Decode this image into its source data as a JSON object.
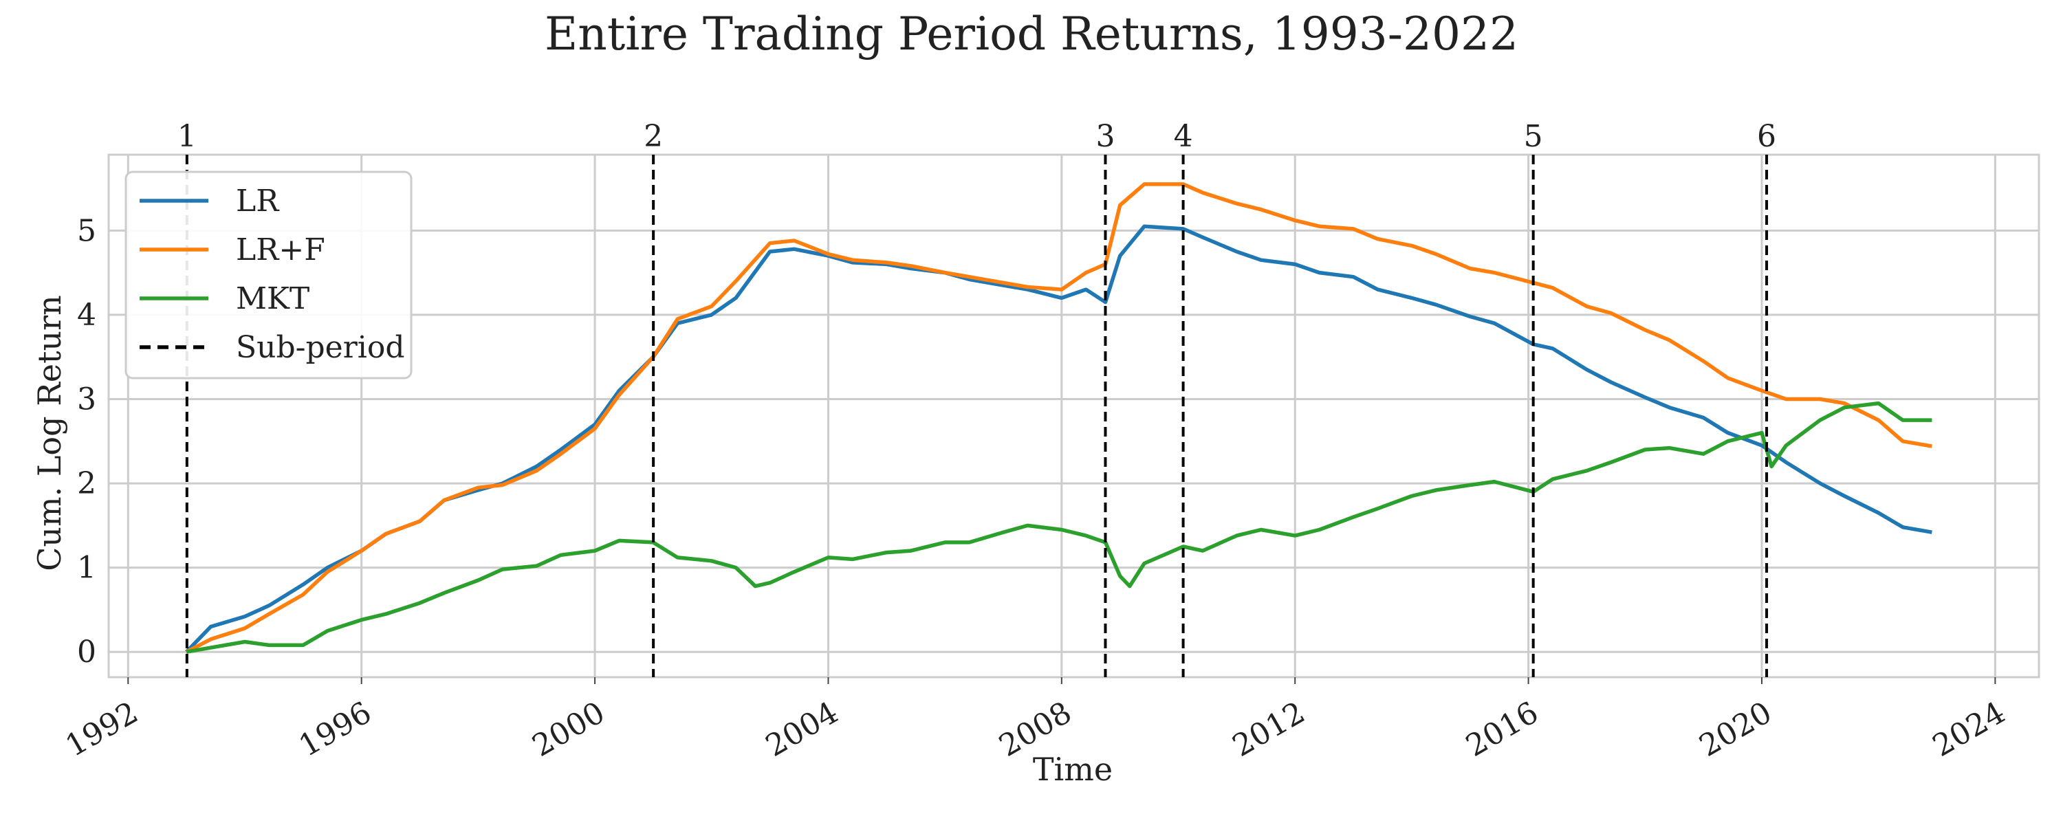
{
  "chart_data": {
    "type": "line",
    "title": "Entire Trading Period Returns, 1993-2022",
    "xlabel": "Time",
    "ylabel": "Cum. Log Return",
    "xlim": [
      "1991-09-01",
      "2024-10-01"
    ],
    "ylim": [
      -0.3,
      5.9
    ],
    "grid": true,
    "legend_position": "top-left",
    "x_ticks": [
      "1992",
      "1996",
      "2000",
      "2004",
      "2008",
      "2012",
      "2016",
      "2020",
      "2024"
    ],
    "y_ticks": [
      0,
      1,
      2,
      3,
      4,
      5
    ],
    "sub_periods": [
      {
        "label": "1",
        "date": "1993-01-04"
      },
      {
        "label": "2",
        "date": "2001-01-02"
      },
      {
        "label": "3",
        "date": "2008-10-01"
      },
      {
        "label": "4",
        "date": "2010-02-01"
      },
      {
        "label": "5",
        "date": "2016-02-01"
      },
      {
        "label": "6",
        "date": "2020-02-01"
      }
    ],
    "series": [
      {
        "name": "LR",
        "color": "#1f77b4",
        "points": [
          [
            "1993-01",
            0.0
          ],
          [
            "1993-06",
            0.3
          ],
          [
            "1994-01",
            0.42
          ],
          [
            "1994-06",
            0.55
          ],
          [
            "1995-01",
            0.8
          ],
          [
            "1995-06",
            1.0
          ],
          [
            "1996-01",
            1.2
          ],
          [
            "1996-06",
            1.4
          ],
          [
            "1997-01",
            1.55
          ],
          [
            "1997-06",
            1.8
          ],
          [
            "1998-01",
            1.92
          ],
          [
            "1998-06",
            2.0
          ],
          [
            "1999-01",
            2.2
          ],
          [
            "1999-06",
            2.4
          ],
          [
            "2000-01",
            2.7
          ],
          [
            "2000-06",
            3.1
          ],
          [
            "2001-01",
            3.5
          ],
          [
            "2001-06",
            3.9
          ],
          [
            "2002-01",
            4.0
          ],
          [
            "2002-06",
            4.2
          ],
          [
            "2003-01",
            4.75
          ],
          [
            "2003-06",
            4.78
          ],
          [
            "2004-01",
            4.7
          ],
          [
            "2004-06",
            4.62
          ],
          [
            "2005-01",
            4.6
          ],
          [
            "2005-06",
            4.55
          ],
          [
            "2006-01",
            4.5
          ],
          [
            "2006-06",
            4.42
          ],
          [
            "2007-01",
            4.35
          ],
          [
            "2007-06",
            4.3
          ],
          [
            "2008-01",
            4.2
          ],
          [
            "2008-06",
            4.3
          ],
          [
            "2008-10",
            4.15
          ],
          [
            "2009-01",
            4.7
          ],
          [
            "2009-06",
            5.05
          ],
          [
            "2010-02",
            5.02
          ],
          [
            "2010-06",
            4.92
          ],
          [
            "2011-01",
            4.75
          ],
          [
            "2011-06",
            4.65
          ],
          [
            "2012-01",
            4.6
          ],
          [
            "2012-06",
            4.5
          ],
          [
            "2013-01",
            4.45
          ],
          [
            "2013-06",
            4.3
          ],
          [
            "2014-01",
            4.2
          ],
          [
            "2014-06",
            4.12
          ],
          [
            "2015-01",
            3.98
          ],
          [
            "2015-06",
            3.9
          ],
          [
            "2016-02",
            3.65
          ],
          [
            "2016-06",
            3.6
          ],
          [
            "2017-01",
            3.35
          ],
          [
            "2017-06",
            3.2
          ],
          [
            "2018-01",
            3.02
          ],
          [
            "2018-06",
            2.9
          ],
          [
            "2019-01",
            2.78
          ],
          [
            "2019-06",
            2.6
          ],
          [
            "2020-01",
            2.45
          ],
          [
            "2020-06",
            2.25
          ],
          [
            "2021-01",
            2.0
          ],
          [
            "2021-06",
            1.85
          ],
          [
            "2022-01",
            1.65
          ],
          [
            "2022-06",
            1.48
          ],
          [
            "2022-12",
            1.42
          ]
        ]
      },
      {
        "name": "LR+F",
        "color": "#ff7f0e",
        "points": [
          [
            "1993-01",
            0.0
          ],
          [
            "1993-06",
            0.15
          ],
          [
            "1994-01",
            0.28
          ],
          [
            "1994-06",
            0.45
          ],
          [
            "1995-01",
            0.68
          ],
          [
            "1995-06",
            0.95
          ],
          [
            "1996-01",
            1.2
          ],
          [
            "1996-06",
            1.4
          ],
          [
            "1997-01",
            1.55
          ],
          [
            "1997-06",
            1.8
          ],
          [
            "1998-01",
            1.95
          ],
          [
            "1998-06",
            1.98
          ],
          [
            "1999-01",
            2.15
          ],
          [
            "1999-06",
            2.35
          ],
          [
            "2000-01",
            2.65
          ],
          [
            "2000-06",
            3.05
          ],
          [
            "2001-01",
            3.5
          ],
          [
            "2001-06",
            3.95
          ],
          [
            "2002-01",
            4.1
          ],
          [
            "2002-06",
            4.4
          ],
          [
            "2003-01",
            4.85
          ],
          [
            "2003-06",
            4.88
          ],
          [
            "2004-01",
            4.72
          ],
          [
            "2004-06",
            4.65
          ],
          [
            "2005-01",
            4.62
          ],
          [
            "2005-06",
            4.58
          ],
          [
            "2006-01",
            4.5
          ],
          [
            "2006-06",
            4.45
          ],
          [
            "2007-01",
            4.38
          ],
          [
            "2007-06",
            4.33
          ],
          [
            "2008-01",
            4.3
          ],
          [
            "2008-06",
            4.5
          ],
          [
            "2008-10",
            4.6
          ],
          [
            "2009-01",
            5.3
          ],
          [
            "2009-06",
            5.55
          ],
          [
            "2010-02",
            5.55
          ],
          [
            "2010-06",
            5.45
          ],
          [
            "2011-01",
            5.32
          ],
          [
            "2011-06",
            5.25
          ],
          [
            "2012-01",
            5.12
          ],
          [
            "2012-06",
            5.05
          ],
          [
            "2013-01",
            5.02
          ],
          [
            "2013-06",
            4.9
          ],
          [
            "2014-01",
            4.82
          ],
          [
            "2014-06",
            4.72
          ],
          [
            "2015-01",
            4.55
          ],
          [
            "2015-06",
            4.5
          ],
          [
            "2016-02",
            4.38
          ],
          [
            "2016-06",
            4.32
          ],
          [
            "2017-01",
            4.1
          ],
          [
            "2017-06",
            4.02
          ],
          [
            "2018-01",
            3.82
          ],
          [
            "2018-06",
            3.7
          ],
          [
            "2019-01",
            3.45
          ],
          [
            "2019-06",
            3.25
          ],
          [
            "2020-01",
            3.1
          ],
          [
            "2020-06",
            3.0
          ],
          [
            "2021-01",
            3.0
          ],
          [
            "2021-06",
            2.95
          ],
          [
            "2022-01",
            2.75
          ],
          [
            "2022-06",
            2.5
          ],
          [
            "2022-12",
            2.44
          ]
        ]
      },
      {
        "name": "MKT",
        "color": "#2ca02c",
        "points": [
          [
            "1993-01",
            0.0
          ],
          [
            "1993-06",
            0.05
          ],
          [
            "1994-01",
            0.12
          ],
          [
            "1994-06",
            0.08
          ],
          [
            "1995-01",
            0.08
          ],
          [
            "1995-06",
            0.25
          ],
          [
            "1996-01",
            0.38
          ],
          [
            "1996-06",
            0.45
          ],
          [
            "1997-01",
            0.58
          ],
          [
            "1997-06",
            0.7
          ],
          [
            "1998-01",
            0.85
          ],
          [
            "1998-06",
            0.98
          ],
          [
            "1999-01",
            1.02
          ],
          [
            "1999-06",
            1.15
          ],
          [
            "2000-01",
            1.2
          ],
          [
            "2000-06",
            1.32
          ],
          [
            "2001-01",
            1.3
          ],
          [
            "2001-06",
            1.12
          ],
          [
            "2002-01",
            1.08
          ],
          [
            "2002-06",
            1.0
          ],
          [
            "2002-10",
            0.78
          ],
          [
            "2003-01",
            0.82
          ],
          [
            "2003-06",
            0.95
          ],
          [
            "2004-01",
            1.12
          ],
          [
            "2004-06",
            1.1
          ],
          [
            "2005-01",
            1.18
          ],
          [
            "2005-06",
            1.2
          ],
          [
            "2006-01",
            1.3
          ],
          [
            "2006-06",
            1.3
          ],
          [
            "2007-01",
            1.42
          ],
          [
            "2007-06",
            1.5
          ],
          [
            "2008-01",
            1.45
          ],
          [
            "2008-06",
            1.38
          ],
          [
            "2008-10",
            1.3
          ],
          [
            "2009-01",
            0.9
          ],
          [
            "2009-03",
            0.78
          ],
          [
            "2009-06",
            1.05
          ],
          [
            "2010-02",
            1.25
          ],
          [
            "2010-06",
            1.2
          ],
          [
            "2011-01",
            1.38
          ],
          [
            "2011-06",
            1.45
          ],
          [
            "2012-01",
            1.38
          ],
          [
            "2012-06",
            1.45
          ],
          [
            "2013-01",
            1.6
          ],
          [
            "2013-06",
            1.7
          ],
          [
            "2014-01",
            1.85
          ],
          [
            "2014-06",
            1.92
          ],
          [
            "2015-01",
            1.98
          ],
          [
            "2015-06",
            2.02
          ],
          [
            "2016-02",
            1.9
          ],
          [
            "2016-06",
            2.05
          ],
          [
            "2017-01",
            2.15
          ],
          [
            "2017-06",
            2.25
          ],
          [
            "2018-01",
            2.4
          ],
          [
            "2018-06",
            2.42
          ],
          [
            "2019-01",
            2.35
          ],
          [
            "2019-06",
            2.5
          ],
          [
            "2020-01",
            2.6
          ],
          [
            "2020-03",
            2.2
          ],
          [
            "2020-06",
            2.45
          ],
          [
            "2021-01",
            2.75
          ],
          [
            "2021-06",
            2.9
          ],
          [
            "2022-01",
            2.95
          ],
          [
            "2022-06",
            2.75
          ],
          [
            "2022-12",
            2.75
          ]
        ]
      }
    ],
    "sub_period_legend": {
      "name": "Sub-period",
      "color": "#000000"
    }
  }
}
